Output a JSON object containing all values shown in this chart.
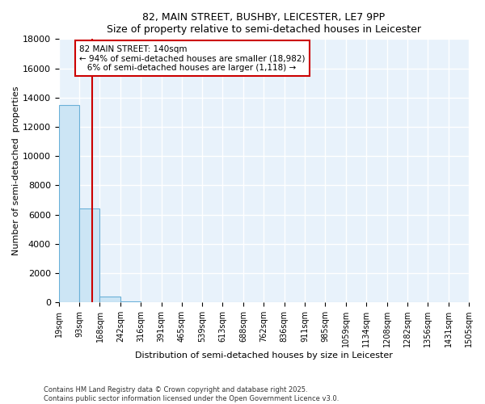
{
  "title": "82, MAIN STREET, BUSHBY, LEICESTER, LE7 9PP",
  "subtitle": "Size of property relative to semi-detached houses in Leicester",
  "xlabel": "Distribution of semi-detached houses by size in Leicester",
  "ylabel": "Number of semi-detached  properties",
  "bar_color": "#cce5f5",
  "bar_edge_color": "#6ab0d8",
  "background_color": "#e8f2fb",
  "grid_color": "#ffffff",
  "red_line_x": 140,
  "annotation_line1": "82 MAIN STREET: 140sqm",
  "annotation_line2": "← 94% of semi-detached houses are smaller (18,982)",
  "annotation_line3": "   6% of semi-detached houses are larger (1,118) →",
  "annotation_box_color": "#ffffff",
  "annotation_border_color": "#cc0000",
  "footer_text": "Contains HM Land Registry data © Crown copyright and database right 2025.\nContains public sector information licensed under the Open Government Licence v3.0.",
  "bin_edges": [
    19,
    93,
    168,
    242,
    316,
    391,
    465,
    539,
    613,
    688,
    762,
    836,
    911,
    985,
    1059,
    1134,
    1208,
    1282,
    1356,
    1431,
    1505
  ],
  "bin_heights": [
    13500,
    6400,
    380,
    90,
    0,
    0,
    0,
    0,
    0,
    0,
    0,
    0,
    0,
    0,
    0,
    0,
    0,
    0,
    0,
    0
  ],
  "ylim": [
    0,
    18000
  ],
  "yticks": [
    0,
    2000,
    4000,
    6000,
    8000,
    10000,
    12000,
    14000,
    16000,
    18000
  ],
  "tick_labels": [
    "19sqm",
    "93sqm",
    "168sqm",
    "242sqm",
    "316sqm",
    "391sqm",
    "465sqm",
    "539sqm",
    "613sqm",
    "688sqm",
    "762sqm",
    "836sqm",
    "911sqm",
    "985sqm",
    "1059sqm",
    "1134sqm",
    "1208sqm",
    "1282sqm",
    "1356sqm",
    "1431sqm",
    "1505sqm"
  ]
}
